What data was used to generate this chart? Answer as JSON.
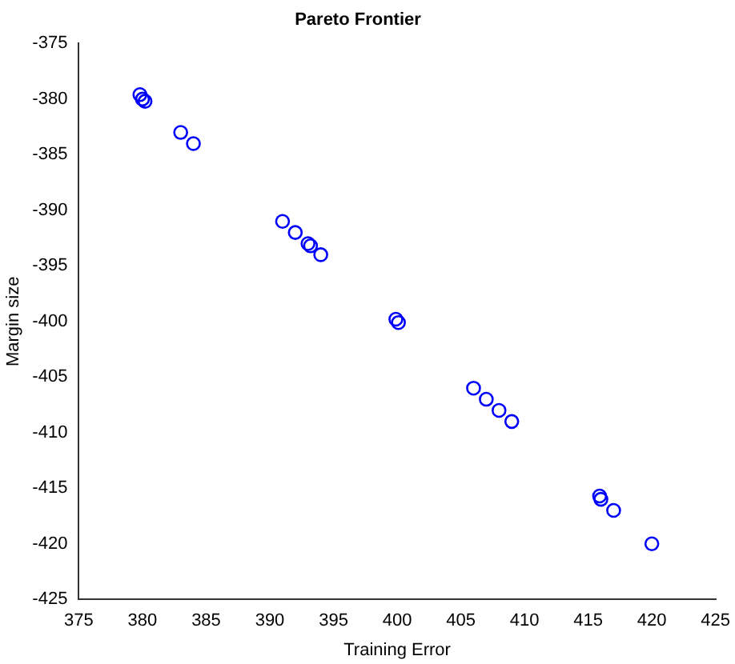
{
  "chart_data": {
    "type": "scatter",
    "title": "Pareto Frontier",
    "xlabel": "Training Error",
    "ylabel": "Margin size",
    "x": [
      379.8,
      380,
      380.2,
      383,
      384,
      391,
      392,
      393,
      393.2,
      394,
      399.9,
      400.1,
      406,
      407,
      408,
      409,
      415.9,
      416,
      417,
      420
    ],
    "series": [
      {
        "color": "#0000ff",
        "values": [
          -379.6,
          -380,
          -380.2,
          -383,
          -384,
          -391,
          -392,
          -393,
          -393.2,
          -394,
          -399.8,
          -400.1,
          -406,
          -407,
          -408,
          -409,
          -415.7,
          -416,
          -417,
          -420
        ]
      }
    ],
    "xlim": [
      375,
      425
    ],
    "xticks": [
      375,
      380,
      385,
      390,
      395,
      400,
      405,
      410,
      415,
      420,
      425
    ],
    "ylim": [
      -425,
      -375
    ],
    "yticks": [
      -425,
      -420,
      -415,
      -410,
      -405,
      -400,
      -395,
      -390,
      -385,
      -380,
      -375
    ],
    "marker": "circle",
    "grid": false,
    "legend": false
  }
}
